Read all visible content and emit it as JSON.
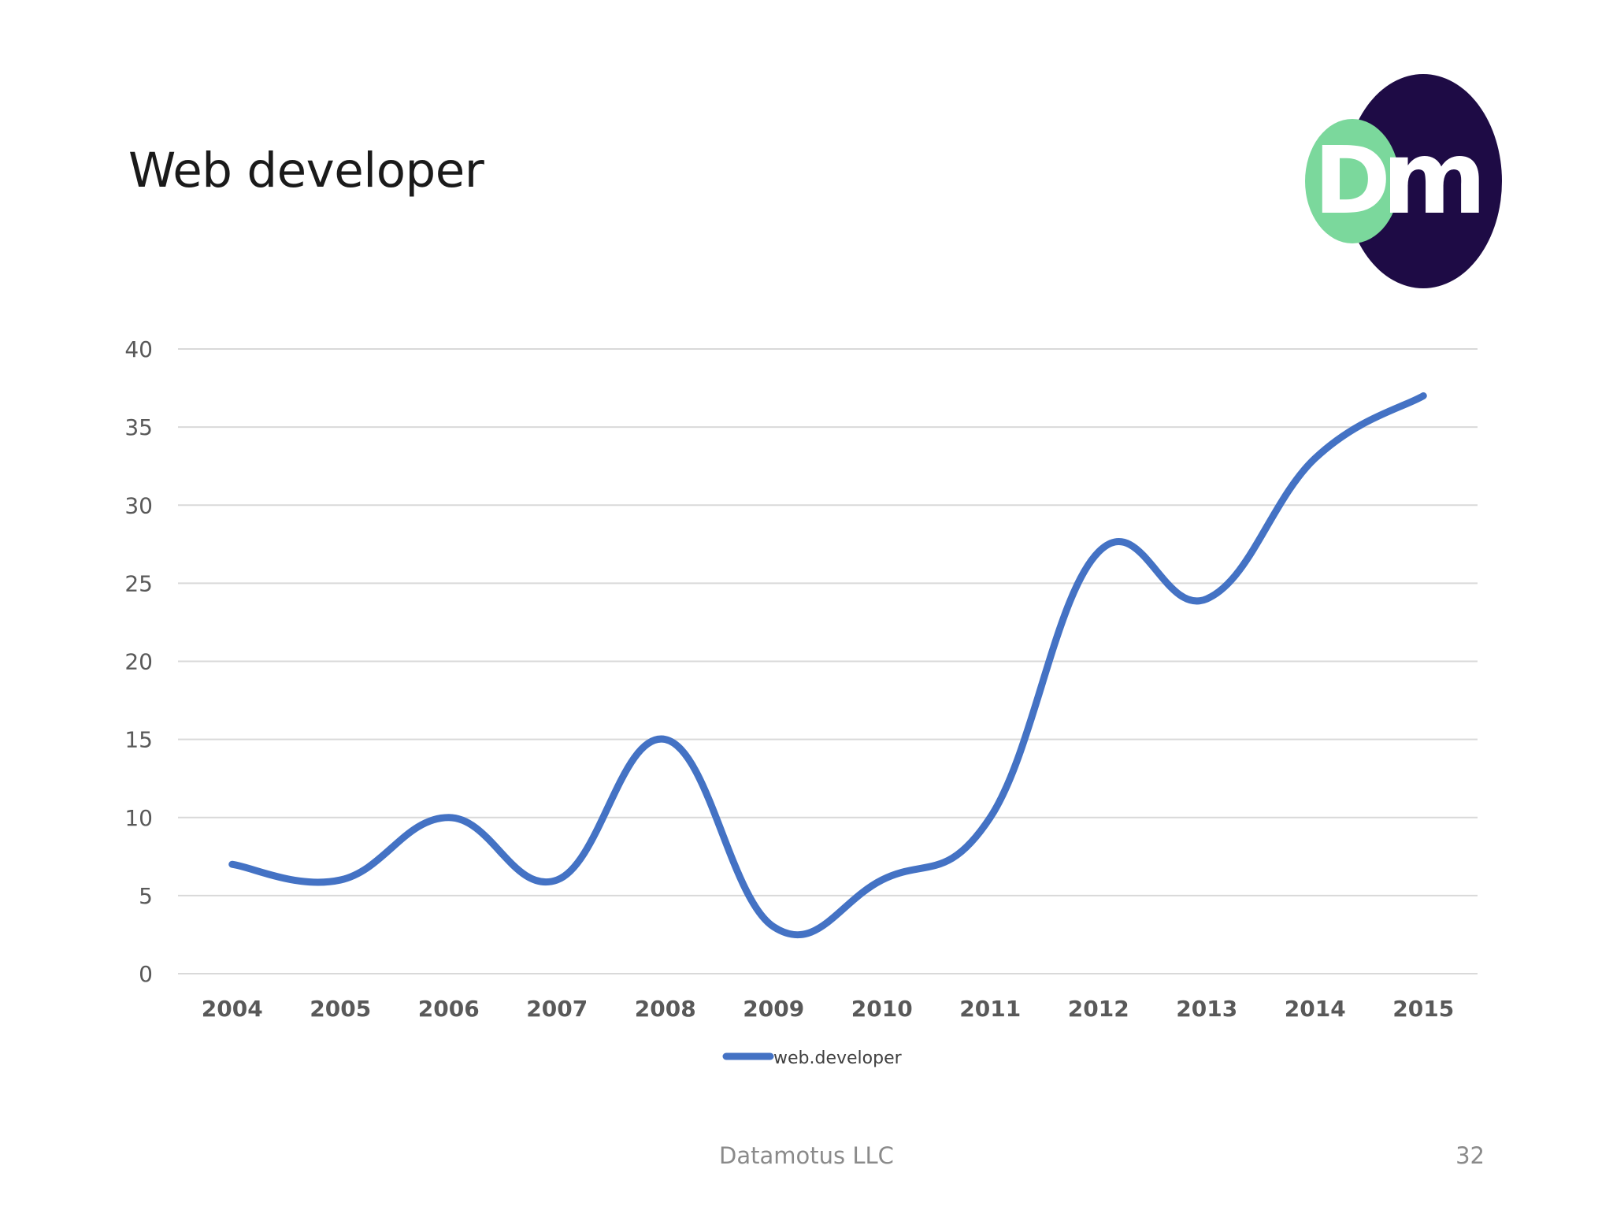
{
  "slide": {
    "title": "Web developer",
    "company": "Datamotus LLC",
    "page_number": "32"
  },
  "logo": {
    "text_left": "D",
    "text_right": "m",
    "colors": {
      "green": "#7bd89c",
      "navy": "#1e0b45"
    }
  },
  "chart_data": {
    "type": "line",
    "smooth": true,
    "categories": [
      "2004",
      "2005",
      "2006",
      "2007",
      "2008",
      "2009",
      "2010",
      "2011",
      "2012",
      "2013",
      "2014",
      "2015"
    ],
    "series": [
      {
        "name": "web.developer",
        "color": "#4472c4",
        "values": [
          7,
          6,
          10,
          6,
          15,
          3,
          6,
          10,
          27,
          24,
          33,
          37
        ]
      }
    ],
    "ylim": [
      0,
      40
    ],
    "yticks": [
      0,
      5,
      10,
      15,
      20,
      25,
      30,
      35,
      40
    ],
    "grid": true,
    "legend_position": "bottom"
  }
}
